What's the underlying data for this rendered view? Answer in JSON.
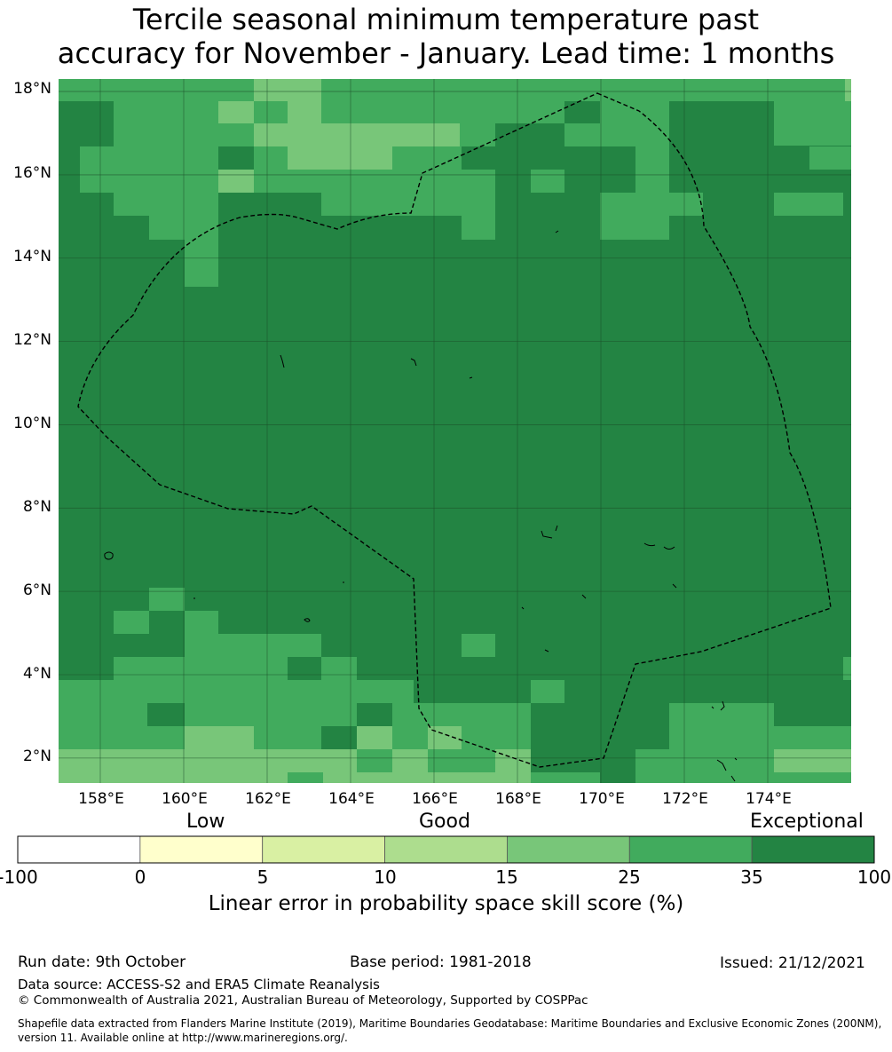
{
  "title": {
    "line1": "Tercile seasonal minimum temperature past",
    "line2": "accuracy for November - January. Lead time: 1 months"
  },
  "map": {
    "lat_labels": [
      "18°N",
      "16°N",
      "14°N",
      "12°N",
      "10°N",
      "8°N",
      "6°N",
      "4°N",
      "2°N"
    ],
    "lon_labels": [
      "158°E",
      "160°E",
      "162°E",
      "164°E",
      "166°E",
      "168°E",
      "170°E",
      "172°E",
      "174°E"
    ],
    "lat_values": [
      18,
      16,
      14,
      12,
      10,
      8,
      6,
      4,
      2
    ],
    "lon_values": [
      158,
      160,
      162,
      164,
      166,
      168,
      170,
      172,
      174
    ],
    "extent": {
      "lon_min": 157.0,
      "lon_max": 176.0,
      "lat_min": 1.4,
      "lat_max": 18.3
    },
    "colors": {
      "c15": "#78c679",
      "c25": "#41ab5d",
      "c35": "#238443",
      "c10": "#addd8e",
      "grid": "#1a4d28",
      "boundary": "#000000"
    }
  },
  "colorbar": {
    "categories": [
      "Low",
      "Good",
      "Exceptional"
    ],
    "ticks": [
      "-100",
      "0",
      "5",
      "10",
      "15",
      "25",
      "35",
      "100"
    ],
    "segment_colors": [
      "#ffffff",
      "#ffffcc",
      "#d9f0a3",
      "#addd8e",
      "#78c679",
      "#41ab5d",
      "#238443"
    ],
    "label": "Linear error in probability space skill score (%)"
  },
  "footer": {
    "run_date": "Run date: 9th October",
    "base_period": "Base period: 1981-2018",
    "issued": "Issued: 21/12/2021",
    "data_source": "Data source: ACCESS-S2 and ERA5 Climate Reanalysis",
    "copyright": "© Commonwealth of Australia 2021, Australian Bureau of Meteorology, Supported by COSPPac",
    "shapefile_line1": "Shapefile data extracted from Flanders Marine Institute (2019), Maritime Boundaries Geodatabase: Maritime Boundaries and Exclusive Economic Zones (200NM),",
    "shapefile_line2": "version 11. Available online at http://www.marineregions.org/."
  }
}
